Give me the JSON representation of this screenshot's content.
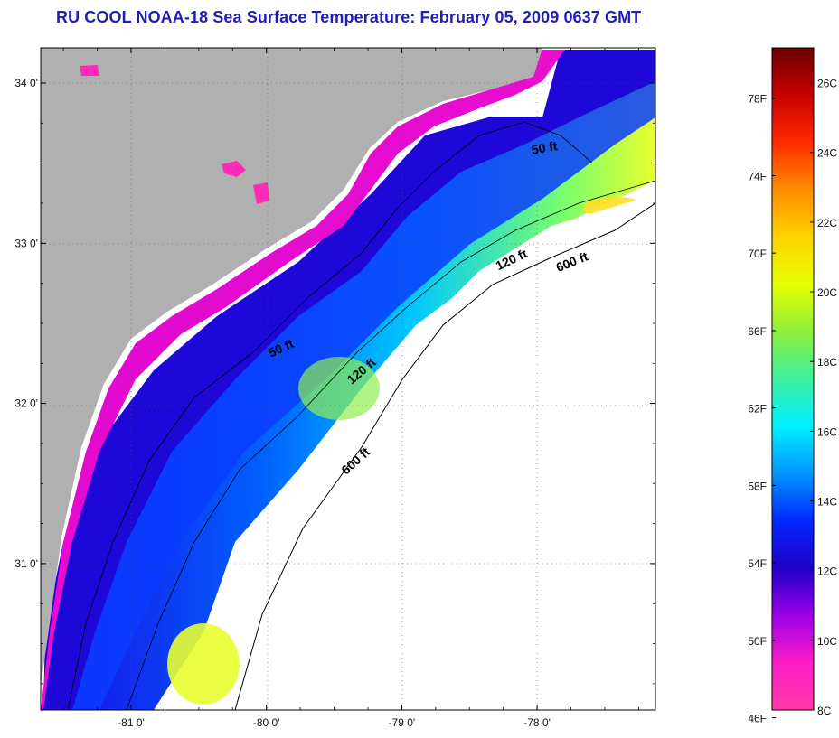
{
  "title": "RU COOL  NOAA-18  Sea Surface Temperature:  February 05, 2009 0637 GMT",
  "map": {
    "lat_ticks": [
      {
        "value": 34,
        "label": "34 0'"
      },
      {
        "value": 33,
        "label": "33 0'"
      },
      {
        "value": 32,
        "label": "32 0'"
      },
      {
        "value": 31,
        "label": "31 0'"
      }
    ],
    "lon_ticks": [
      {
        "value": -81,
        "label": "-81 0'"
      },
      {
        "value": -80,
        "label": "-80 0'"
      },
      {
        "value": -79,
        "label": "-79 0'"
      },
      {
        "value": -78,
        "label": "-78 0'"
      }
    ],
    "contour_labels": [
      {
        "depth": "50 ft",
        "text": "50 ft"
      },
      {
        "depth": "50 ft",
        "text": "50 ft"
      },
      {
        "depth": "120 ft",
        "text": "120 ft"
      },
      {
        "depth": "120 ft",
        "text": "120 ft"
      },
      {
        "depth": "600 ft",
        "text": "600 ft"
      },
      {
        "depth": "600 ft",
        "text": "600 ft"
      }
    ],
    "colors": {
      "land": "#b0b0b0",
      "no_data": "#ffffff",
      "grid": "#555555"
    }
  },
  "colorbar": {
    "fahrenheit_labels": [
      "78F",
      "74F",
      "70F",
      "66F",
      "62F",
      "58F",
      "54F",
      "50F",
      "46F"
    ],
    "celsius_labels": [
      "26C",
      "24C",
      "22C",
      "20C",
      "18C",
      "16C",
      "14C",
      "12C",
      "10C",
      "8C"
    ],
    "colors_top_to_bottom": [
      "#6b0000",
      "#c80000",
      "#ff2a00",
      "#ff8c00",
      "#ffd400",
      "#e6ff00",
      "#8cf03c",
      "#3cf0a0",
      "#00f0ff",
      "#0096ff",
      "#0028ff",
      "#2000c8",
      "#9a00e6",
      "#ff1cc8",
      "#ff3aa8"
    ]
  }
}
